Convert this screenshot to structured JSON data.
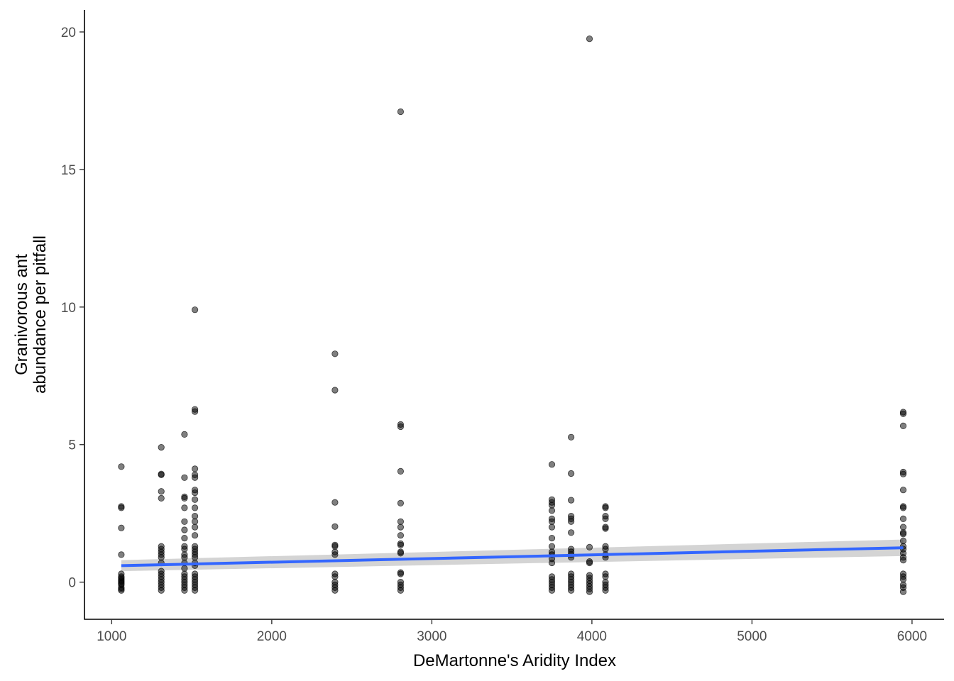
{
  "chart_data": {
    "type": "scatter",
    "title": "",
    "xlabel": "DeMartonne's Aridity Index",
    "ylabel_lines": [
      "Granivorous ant",
      "abundance per pitfall"
    ],
    "xlim": [
      830,
      6200
    ],
    "ylim": [
      -1.35,
      20.8
    ],
    "x_ticks": [
      1000,
      2000,
      3000,
      4000,
      5000,
      6000
    ],
    "y_ticks": [
      0,
      5,
      10,
      15,
      20
    ],
    "x_tick_labels": [
      "1000",
      "2000",
      "3000",
      "4000",
      "5000",
      "6000"
    ],
    "y_tick_labels": [
      "0",
      "5",
      "10",
      "15",
      "20"
    ],
    "grid": false,
    "point_color": "#000000",
    "point_opacity": 0.5,
    "trend": {
      "type": "linear",
      "color": "#3366FF",
      "band_color": "#cccccc",
      "x": [
        1060,
        5945
      ],
      "y": [
        0.6,
        1.25
      ],
      "ci_lower": [
        0.4,
        0.95
      ],
      "ci_upper": [
        0.8,
        1.55
      ]
    },
    "points": [
      [
        1060,
        -0.3
      ],
      [
        1060,
        -0.2
      ],
      [
        1060,
        -0.1
      ],
      [
        1060,
        0.0
      ],
      [
        1060,
        0.1
      ],
      [
        1060,
        0.2
      ],
      [
        1060,
        0.3
      ],
      [
        1060,
        -0.25
      ],
      [
        1060,
        0.05
      ],
      [
        1060,
        1.0
      ],
      [
        1060,
        1.97
      ],
      [
        1060,
        2.7
      ],
      [
        1060,
        2.75
      ],
      [
        1060,
        4.2
      ],
      [
        1060,
        -0.05
      ],
      [
        1060,
        0.15
      ],
      [
        1310,
        -0.3
      ],
      [
        1310,
        -0.2
      ],
      [
        1310,
        -0.1
      ],
      [
        1310,
        0.0
      ],
      [
        1310,
        0.1
      ],
      [
        1310,
        0.2
      ],
      [
        1310,
        0.3
      ],
      [
        1310,
        0.4
      ],
      [
        1310,
        0.7
      ],
      [
        1310,
        0.9
      ],
      [
        1310,
        1.0
      ],
      [
        1310,
        1.1
      ],
      [
        1310,
        1.2
      ],
      [
        1310,
        1.3
      ],
      [
        1310,
        3.05
      ],
      [
        1310,
        3.3
      ],
      [
        1310,
        3.9
      ],
      [
        1310,
        3.93
      ],
      [
        1310,
        4.9
      ],
      [
        1455,
        -0.3
      ],
      [
        1455,
        -0.2
      ],
      [
        1455,
        -0.1
      ],
      [
        1455,
        0.0
      ],
      [
        1455,
        0.1
      ],
      [
        1455,
        0.2
      ],
      [
        1455,
        0.3
      ],
      [
        1455,
        0.5
      ],
      [
        1455,
        0.7
      ],
      [
        1455,
        0.9
      ],
      [
        1455,
        1.0
      ],
      [
        1455,
        1.2
      ],
      [
        1455,
        1.3
      ],
      [
        1455,
        1.6
      ],
      [
        1455,
        1.9
      ],
      [
        1455,
        2.2
      ],
      [
        1455,
        2.7
      ],
      [
        1455,
        3.05
      ],
      [
        1455,
        3.1
      ],
      [
        1455,
        3.8
      ],
      [
        1455,
        5.37
      ],
      [
        1520,
        -0.3
      ],
      [
        1520,
        -0.2
      ],
      [
        1520,
        -0.1
      ],
      [
        1520,
        0.0
      ],
      [
        1520,
        0.1
      ],
      [
        1520,
        0.2
      ],
      [
        1520,
        0.3
      ],
      [
        1520,
        0.6
      ],
      [
        1520,
        0.7
      ],
      [
        1520,
        0.9
      ],
      [
        1520,
        1.0
      ],
      [
        1520,
        1.1
      ],
      [
        1520,
        1.2
      ],
      [
        1520,
        1.3
      ],
      [
        1520,
        1.7
      ],
      [
        1520,
        2.0
      ],
      [
        1520,
        2.2
      ],
      [
        1520,
        2.4
      ],
      [
        1520,
        2.7
      ],
      [
        1520,
        3.0
      ],
      [
        1520,
        3.25
      ],
      [
        1520,
        3.35
      ],
      [
        1520,
        3.8
      ],
      [
        1520,
        3.9
      ],
      [
        1520,
        4.12
      ],
      [
        1520,
        6.2
      ],
      [
        1520,
        6.28
      ],
      [
        1520,
        9.9
      ],
      [
        2395,
        -0.3
      ],
      [
        2395,
        -0.2
      ],
      [
        2395,
        -0.1
      ],
      [
        2395,
        0.0
      ],
      [
        2395,
        0.2
      ],
      [
        2395,
        0.3
      ],
      [
        2395,
        1.0
      ],
      [
        2395,
        1.1
      ],
      [
        2395,
        1.3
      ],
      [
        2395,
        1.35
      ],
      [
        2395,
        2.02
      ],
      [
        2395,
        2.9
      ],
      [
        2395,
        6.98
      ],
      [
        2395,
        8.3
      ],
      [
        2805,
        -0.3
      ],
      [
        2805,
        -0.2
      ],
      [
        2805,
        -0.1
      ],
      [
        2805,
        0.0
      ],
      [
        2805,
        0.3
      ],
      [
        2805,
        0.35
      ],
      [
        2805,
        1.05
      ],
      [
        2805,
        1.1
      ],
      [
        2805,
        1.35
      ],
      [
        2805,
        1.4
      ],
      [
        2805,
        1.7
      ],
      [
        2805,
        2.0
      ],
      [
        2805,
        2.2
      ],
      [
        2805,
        2.87
      ],
      [
        2805,
        4.03
      ],
      [
        2805,
        5.65
      ],
      [
        2805,
        5.73
      ],
      [
        2805,
        17.1
      ],
      [
        3750,
        -0.3
      ],
      [
        3750,
        -0.2
      ],
      [
        3750,
        -0.1
      ],
      [
        3750,
        0.0
      ],
      [
        3750,
        0.1
      ],
      [
        3750,
        0.2
      ],
      [
        3750,
        0.7
      ],
      [
        3750,
        0.85
      ],
      [
        3750,
        1.0
      ],
      [
        3750,
        1.1
      ],
      [
        3750,
        1.3
      ],
      [
        3750,
        1.6
      ],
      [
        3750,
        2.0
      ],
      [
        3750,
        2.2
      ],
      [
        3750,
        2.3
      ],
      [
        3750,
        2.6
      ],
      [
        3750,
        2.8
      ],
      [
        3750,
        2.9
      ],
      [
        3750,
        3.0
      ],
      [
        3750,
        4.28
      ],
      [
        3870,
        -0.3
      ],
      [
        3870,
        -0.2
      ],
      [
        3870,
        -0.1
      ],
      [
        3870,
        0.0
      ],
      [
        3870,
        0.1
      ],
      [
        3870,
        0.2
      ],
      [
        3870,
        0.3
      ],
      [
        3870,
        0.9
      ],
      [
        3870,
        1.0
      ],
      [
        3870,
        1.1
      ],
      [
        3870,
        1.2
      ],
      [
        3870,
        1.8
      ],
      [
        3870,
        2.2
      ],
      [
        3870,
        2.3
      ],
      [
        3870,
        2.4
      ],
      [
        3870,
        2.98
      ],
      [
        3870,
        3.95
      ],
      [
        3870,
        5.27
      ],
      [
        3985,
        -0.35
      ],
      [
        3985,
        -0.25
      ],
      [
        3985,
        -0.15
      ],
      [
        3985,
        -0.05
      ],
      [
        3985,
        0.05
      ],
      [
        3985,
        0.15
      ],
      [
        3985,
        0.25
      ],
      [
        3985,
        0.7
      ],
      [
        3985,
        0.75
      ],
      [
        3985,
        1.27
      ],
      [
        3985,
        19.75
      ],
      [
        4085,
        -0.3
      ],
      [
        4085,
        -0.2
      ],
      [
        4085,
        -0.1
      ],
      [
        4085,
        0.0
      ],
      [
        4085,
        0.2
      ],
      [
        4085,
        0.3
      ],
      [
        4085,
        0.9
      ],
      [
        4085,
        1.0
      ],
      [
        4085,
        1.2
      ],
      [
        4085,
        1.3
      ],
      [
        4085,
        1.95
      ],
      [
        4085,
        2.0
      ],
      [
        4085,
        2.3
      ],
      [
        4085,
        2.4
      ],
      [
        4085,
        2.7
      ],
      [
        4085,
        2.75
      ],
      [
        5945,
        -0.35
      ],
      [
        5945,
        -0.2
      ],
      [
        5945,
        -0.1
      ],
      [
        5945,
        0.1
      ],
      [
        5945,
        0.2
      ],
      [
        5945,
        0.3
      ],
      [
        5945,
        0.8
      ],
      [
        5945,
        0.9
      ],
      [
        5945,
        1.05
      ],
      [
        5945,
        1.2
      ],
      [
        5945,
        1.3
      ],
      [
        5945,
        1.5
      ],
      [
        5945,
        1.75
      ],
      [
        5945,
        1.8
      ],
      [
        5945,
        2.0
      ],
      [
        5945,
        2.3
      ],
      [
        5945,
        2.7
      ],
      [
        5945,
        2.75
      ],
      [
        5945,
        3.35
      ],
      [
        5945,
        3.93
      ],
      [
        5945,
        4.0
      ],
      [
        5945,
        5.68
      ],
      [
        5945,
        6.12
      ],
      [
        5945,
        6.18
      ]
    ]
  }
}
